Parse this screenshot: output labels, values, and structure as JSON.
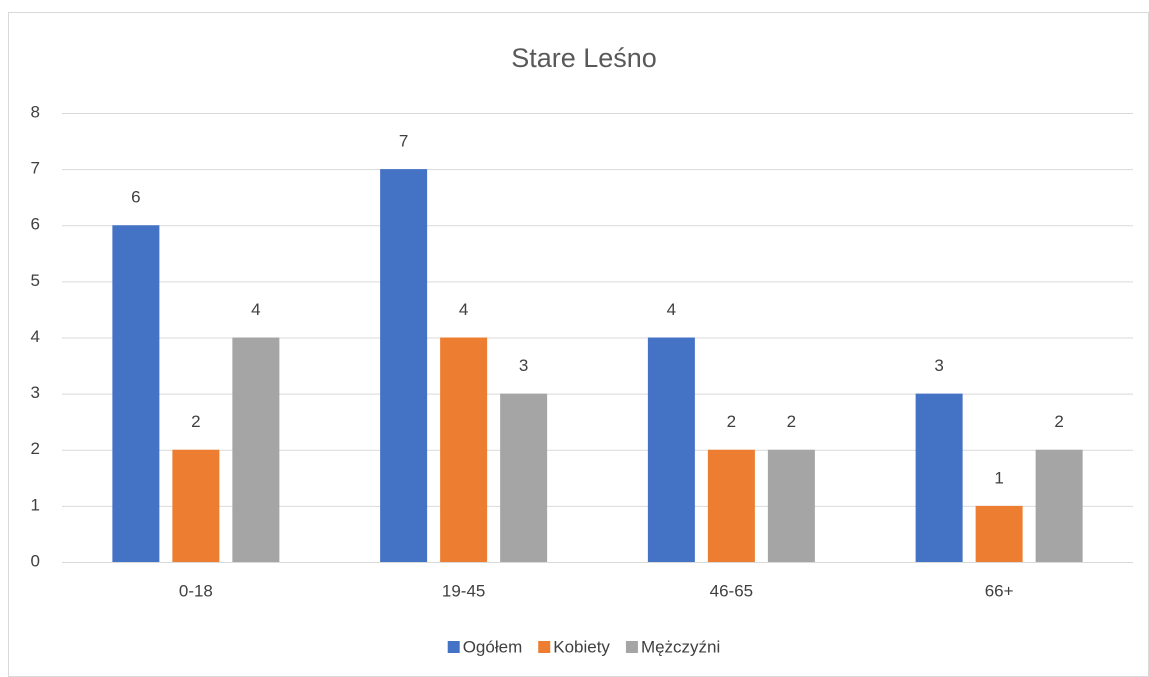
{
  "chart_data": {
    "type": "bar",
    "title": "Stare Leśno",
    "categories": [
      "0-18",
      "19-45",
      "46-65",
      "66+"
    ],
    "series": [
      {
        "name": "Ogółem",
        "color": "#4472c4",
        "values": [
          6,
          7,
          4,
          3
        ]
      },
      {
        "name": "Kobiety",
        "color": "#ed7d31",
        "values": [
          2,
          4,
          2,
          1
        ]
      },
      {
        "name": "Mężczyźni",
        "color": "#a5a5a5",
        "values": [
          4,
          3,
          2,
          2
        ]
      }
    ],
    "ylim": [
      0,
      8
    ],
    "yticks": [
      0,
      1,
      2,
      3,
      4,
      5,
      6,
      7,
      8
    ],
    "grid": true,
    "legend": "bottom"
  }
}
